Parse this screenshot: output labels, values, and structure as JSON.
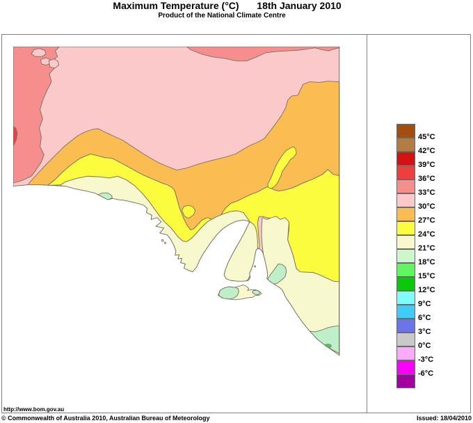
{
  "title": {
    "main": "Maximum Temperature (°C)",
    "date": "18th January 2010",
    "subtitle": "Product of the National Climate Centre"
  },
  "legend": {
    "labels": [
      "45°C",
      "42°C",
      "39°C",
      "36°C",
      "33°C",
      "30°C",
      "27°C",
      "24°C",
      "21°C",
      "18°C",
      "15°C",
      "12°C",
      "9°C",
      "6°C",
      "3°C",
      "0°C",
      "-3°C",
      "-6°C"
    ],
    "colors": [
      "#A24E10",
      "#B27C42",
      "#D31212",
      "#EF3E3E",
      "#F68E8E",
      "#FBC9C9",
      "#FBBC52",
      "#FCFC3E",
      "#F8F8CF",
      "#CDF6CD",
      "#5FF75F",
      "#0AC80A",
      "#80FCFC",
      "#42CAF8",
      "#6B74E8",
      "#C9C9C9",
      "#FAABFA",
      "#FA00FA",
      "#A100A1"
    ]
  },
  "palette": {
    "red": "#EF3E3E",
    "salmon": "#F68E8E",
    "pink": "#FBC9C9",
    "orange": "#FBBC52",
    "yellow": "#FCFC3E",
    "cream": "#F8F8CF",
    "pale_green": "#BEEFC8",
    "mid_green": "#4CCE5C",
    "ocean": "#FFFFFF"
  },
  "footer": {
    "url": "http://www.bom.gov.au",
    "copyright": "© Commonwealth of Australia 2010, Australian Bureau of Meteorology",
    "issued": "Issued: 18/04/2010"
  }
}
